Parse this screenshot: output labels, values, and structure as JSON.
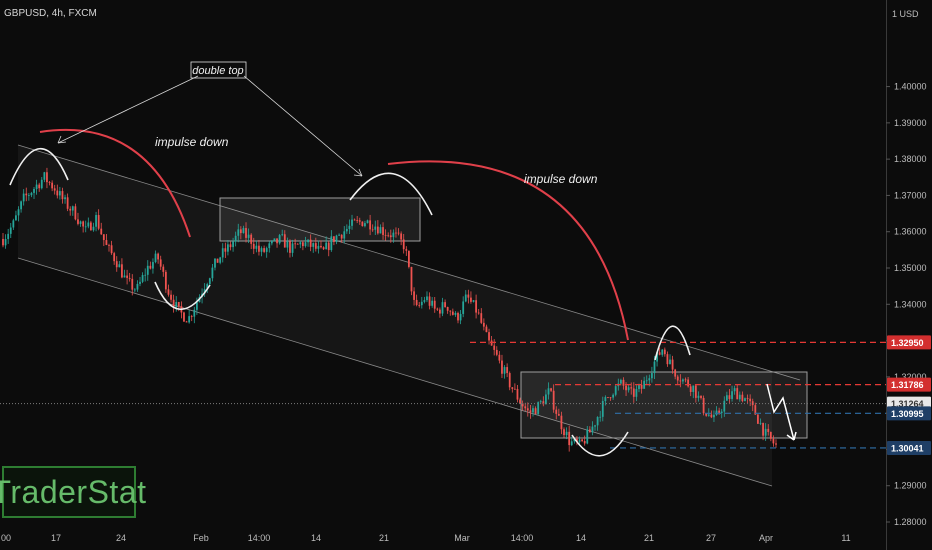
{
  "header": {
    "symbol": "GBPUSD, 4h, FXCM"
  },
  "logo": {
    "text": "TraderStat"
  },
  "colors": {
    "background": "#0c0c0c",
    "bull": "#26a69a",
    "bear": "#ef5350",
    "annotation_red": "#e0404a",
    "annotation_white": "#f0f0f0",
    "channel": "#bdbdbd",
    "resistance_red": "#e53935",
    "support_blue": "#2f6fa8",
    "price_gray": "#ffffff"
  },
  "annotations": {
    "double_top": "double top",
    "impulse_1": "impulse down",
    "impulse_2": "impulse down"
  },
  "chart_data": {
    "type": "candlestick",
    "y_unit_label": "USD",
    "ylim": [
      1.28,
      1.42
    ],
    "y_ticks": [
      "1.28000",
      "1.29000",
      "1.30000",
      "1.31000",
      "1.32000",
      "1.33000",
      "1.34000",
      "1.35000",
      "1.36000",
      "1.37000",
      "1.38000",
      "1.39000",
      "1.40000"
    ],
    "x_ticks": [
      "00",
      "17",
      "24",
      "Feb",
      "14:00",
      "14",
      "21",
      "Mar",
      "14:00",
      "14",
      "21",
      "27",
      "Apr",
      "11"
    ],
    "price_levels": [
      {
        "value": "1.32950",
        "kind": "resistance"
      },
      {
        "value": "1.31786",
        "kind": "resistance"
      },
      {
        "value": "1.31264",
        "kind": "current"
      },
      {
        "value": "1.30995",
        "kind": "support"
      },
      {
        "value": "1.30041",
        "kind": "support"
      }
    ],
    "close_path": [
      1.358,
      1.362,
      1.369,
      1.372,
      1.375,
      1.372,
      1.368,
      1.365,
      1.36,
      1.364,
      1.356,
      1.352,
      1.346,
      1.344,
      1.35,
      1.353,
      1.344,
      1.338,
      1.336,
      1.342,
      1.348,
      1.353,
      1.356,
      1.36,
      1.358,
      1.354,
      1.356,
      1.358,
      1.355,
      1.357,
      1.356,
      1.354,
      1.358,
      1.36,
      1.362,
      1.363,
      1.362,
      1.36,
      1.359,
      1.356,
      1.338,
      1.342,
      1.338,
      1.34,
      1.336,
      1.342,
      1.338,
      1.33,
      1.325,
      1.319,
      1.314,
      1.31,
      1.312,
      1.316,
      1.308,
      1.302,
      1.301,
      1.305,
      1.311,
      1.316,
      1.318,
      1.315,
      1.317,
      1.323,
      1.328,
      1.322,
      1.319,
      1.317,
      1.311,
      1.308,
      1.313,
      1.316,
      1.314,
      1.31,
      1.304,
      1.301
    ]
  }
}
